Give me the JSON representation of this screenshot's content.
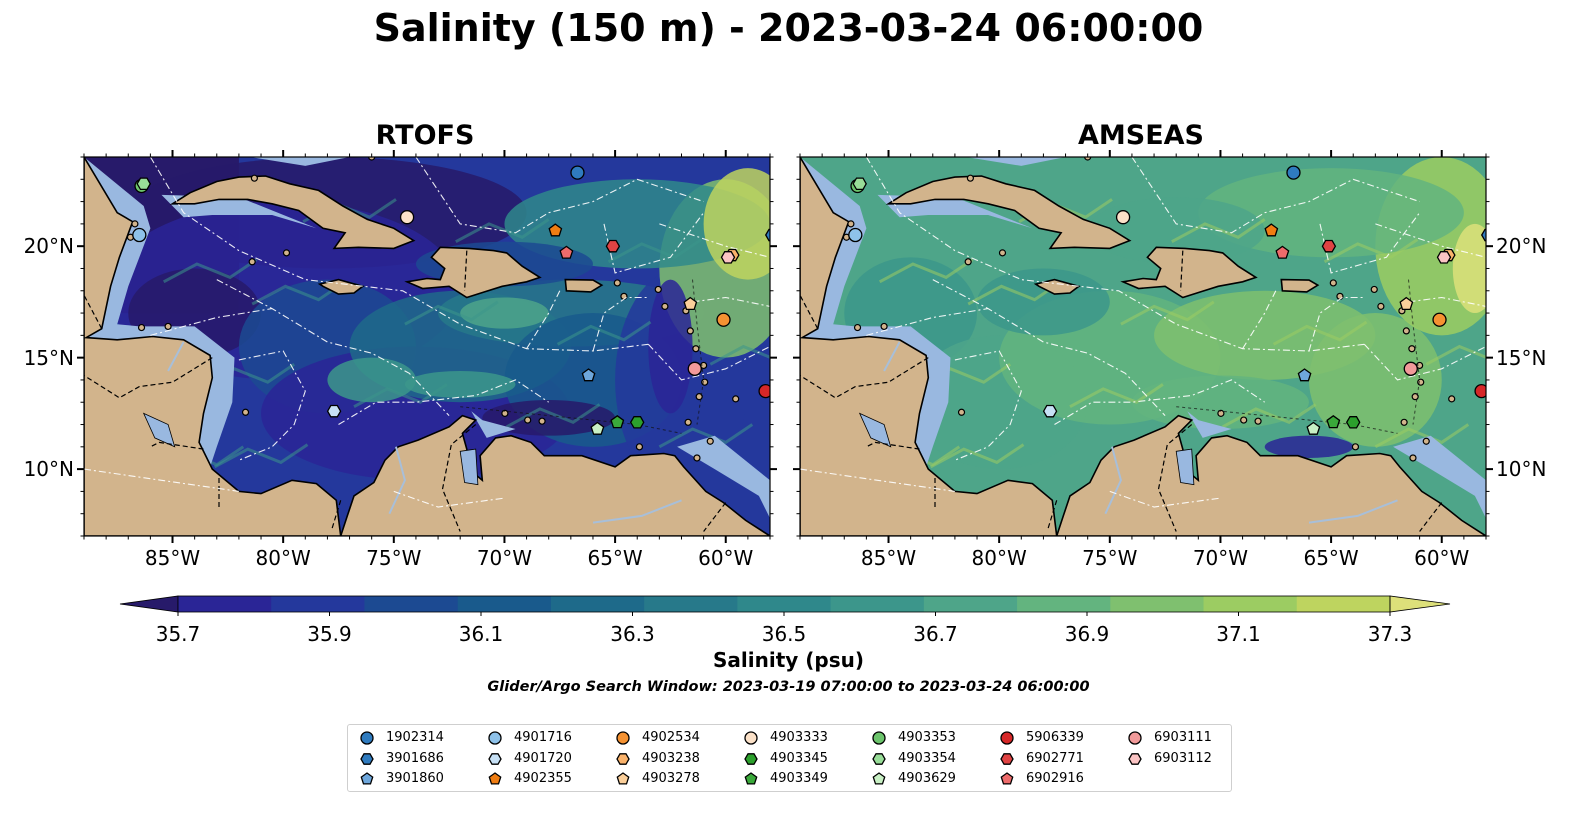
{
  "title": "Salinity (150 m) - 2023-03-24 06:00:00",
  "panels": [
    {
      "title": "RTOFS",
      "field": "rtofs"
    },
    {
      "title": "AMSEAS",
      "field": "amseas"
    }
  ],
  "map": {
    "lon_range": [
      -89.0,
      -58.0
    ],
    "lat_range": [
      7.0,
      24.0
    ],
    "lon_ticks": [
      {
        "value": -85,
        "label": "85°W"
      },
      {
        "value": -80,
        "label": "80°W"
      },
      {
        "value": -75,
        "label": "75°W"
      },
      {
        "value": -70,
        "label": "70°W"
      },
      {
        "value": -65,
        "label": "65°W"
      },
      {
        "value": -60,
        "label": "60°W"
      }
    ],
    "lat_ticks": [
      {
        "value": 20,
        "label": "20°N"
      },
      {
        "value": 15,
        "label": "15°N"
      },
      {
        "value": 10,
        "label": "10°N"
      }
    ],
    "colors": {
      "land": "#d2b48c",
      "shelf": "#99b8e0",
      "coast": "#000000",
      "eez": "#ffffff"
    }
  },
  "colorbar": {
    "label": "Salinity (psu)",
    "min": 35.6,
    "max": 37.4,
    "step": 0.1,
    "ticks": [
      "35.7",
      "35.9",
      "36.1",
      "36.3",
      "36.5",
      "36.7",
      "36.9",
      "37.1",
      "37.3"
    ],
    "colors": [
      "#271a6a",
      "#2a2596",
      "#24389c",
      "#1c4a92",
      "#195a8c",
      "#1e6a8a",
      "#27798a",
      "#2f888b",
      "#3c968b",
      "#4ea589",
      "#63b47f",
      "#7fc06f",
      "#9ccc62",
      "#bed45f",
      "#dde07a"
    ],
    "extend": "both"
  },
  "search_window": "Glider/Argo Search Window: 2023-03-19 07:00:00 to 2023-03-24 06:00:00",
  "legend": {
    "columns": [
      [
        {
          "id": "1902314",
          "marker": "circle",
          "color": "#2f7bbf"
        },
        {
          "id": "3901686",
          "marker": "hexagon",
          "color": "#2f7bbf"
        },
        {
          "id": "3901860",
          "marker": "pentagon",
          "color": "#6ea7dc"
        }
      ],
      [
        {
          "id": "4901716",
          "marker": "circle",
          "color": "#8ec2ea"
        },
        {
          "id": "4901720",
          "marker": "hexagon",
          "color": "#c6e0f5"
        },
        {
          "id": "4902355",
          "marker": "pentagon",
          "color": "#f07d12"
        }
      ],
      [
        {
          "id": "4902534",
          "marker": "circle",
          "color": "#f59232"
        },
        {
          "id": "4903238",
          "marker": "hexagon",
          "color": "#f9b26b"
        },
        {
          "id": "4903278",
          "marker": "pentagon",
          "color": "#fbcf9a"
        }
      ],
      [
        {
          "id": "4903333",
          "marker": "circle",
          "color": "#fbe1c8"
        },
        {
          "id": "4903345",
          "marker": "hexagon",
          "color": "#2ca02c"
        },
        {
          "id": "4903349",
          "marker": "pentagon",
          "color": "#3aa93a"
        }
      ],
      [
        {
          "id": "4903353",
          "marker": "circle",
          "color": "#6cc46c"
        },
        {
          "id": "4903354",
          "marker": "hexagon",
          "color": "#98dd98"
        },
        {
          "id": "4903629",
          "marker": "pentagon",
          "color": "#c8f0c4"
        }
      ],
      [
        {
          "id": "5906339",
          "marker": "circle",
          "color": "#d62728"
        },
        {
          "id": "6902771",
          "marker": "hexagon",
          "color": "#e04343"
        },
        {
          "id": "6902916",
          "marker": "pentagon",
          "color": "#ee6b6b"
        }
      ],
      [
        {
          "id": "6903111",
          "marker": "circle",
          "color": "#f29a9a"
        },
        {
          "id": "6903112",
          "marker": "hexagon",
          "color": "#fbc4c4"
        }
      ]
    ]
  },
  "floats": [
    {
      "id": "1902314",
      "lon": -66.7,
      "lat": 23.3
    },
    {
      "id": "3901686",
      "lon": -57.9,
      "lat": 20.5
    },
    {
      "id": "3901860",
      "lon": -66.2,
      "lat": 14.2
    },
    {
      "id": "4901716",
      "lon": -86.5,
      "lat": 20.5
    },
    {
      "id": "4901720",
      "lon": -77.7,
      "lat": 12.6
    },
    {
      "id": "4902355",
      "lon": -67.7,
      "lat": 20.7
    },
    {
      "id": "4902534",
      "lon": -60.1,
      "lat": 16.7
    },
    {
      "id": "4903238",
      "lon": -59.7,
      "lat": 19.6
    },
    {
      "id": "4903278",
      "lon": -61.6,
      "lat": 17.4
    },
    {
      "id": "4903333",
      "lon": -74.4,
      "lat": 21.3
    },
    {
      "id": "4903345",
      "lon": -64.0,
      "lat": 12.1
    },
    {
      "id": "4903349",
      "lon": -64.9,
      "lat": 12.1
    },
    {
      "id": "4903353",
      "lon": -86.4,
      "lat": 22.7
    },
    {
      "id": "4903354",
      "lon": -86.3,
      "lat": 22.8
    },
    {
      "id": "4903629",
      "lon": -65.8,
      "lat": 11.8
    },
    {
      "id": "5906339",
      "lon": -58.2,
      "lat": 13.5
    },
    {
      "id": "6902771",
      "lon": -65.1,
      "lat": 20.0
    },
    {
      "id": "6902916",
      "lon": -67.2,
      "lat": 19.7
    },
    {
      "id": "6903111",
      "lon": -61.4,
      "lat": 14.5
    },
    {
      "id": "6903112",
      "lon": -59.9,
      "lat": 19.5
    }
  ]
}
